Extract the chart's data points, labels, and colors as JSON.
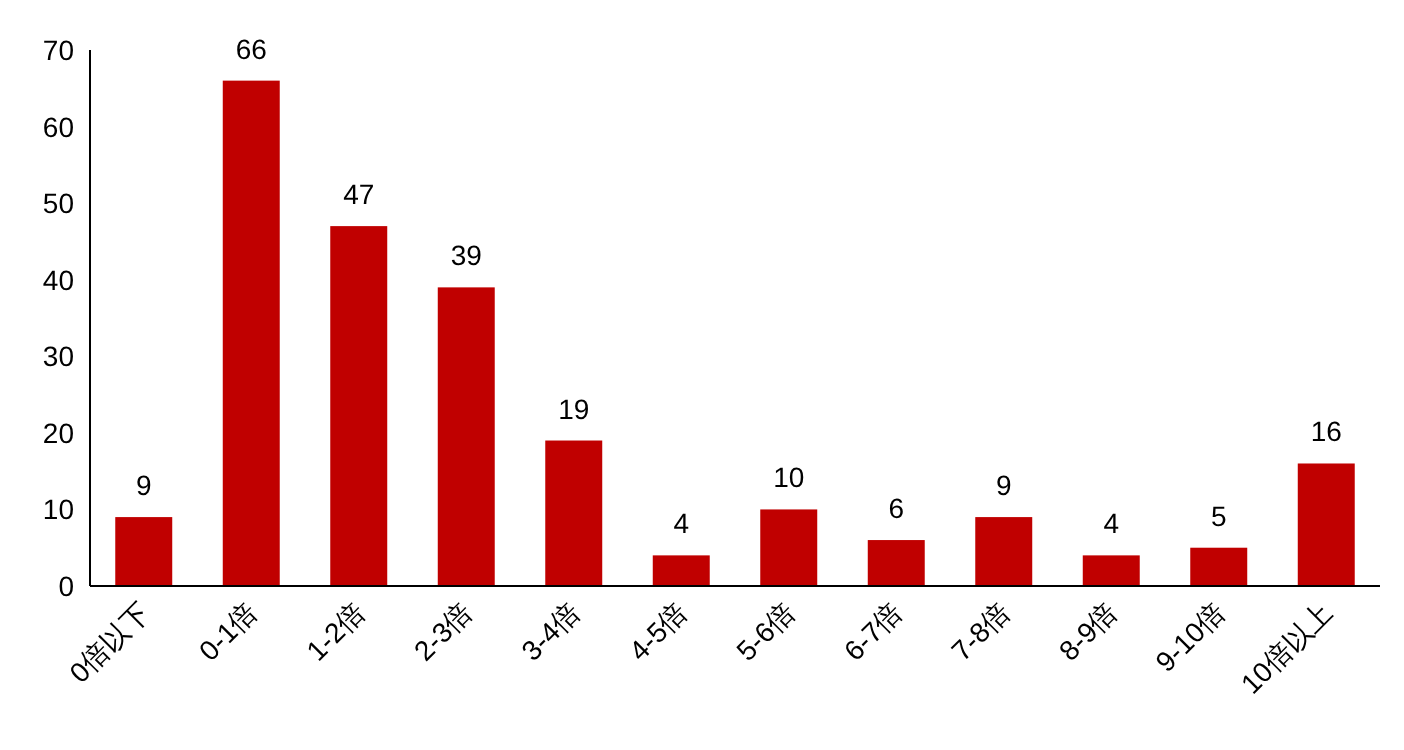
{
  "chart_data": {
    "type": "bar",
    "categories": [
      "0倍以下",
      "0-1倍",
      "1-2倍",
      "2-3倍",
      "3-4倍",
      "4-5倍",
      "5-6倍",
      "6-7倍",
      "7-8倍",
      "8-9倍",
      "9-10倍",
      "10倍以上"
    ],
    "values": [
      9,
      66,
      47,
      39,
      19,
      4,
      10,
      6,
      9,
      4,
      5,
      16
    ],
    "color": "#c00000",
    "ylim": [
      0,
      70
    ],
    "yticks": [
      0,
      10,
      20,
      30,
      40,
      50,
      60,
      70
    ],
    "data_labels": true
  }
}
